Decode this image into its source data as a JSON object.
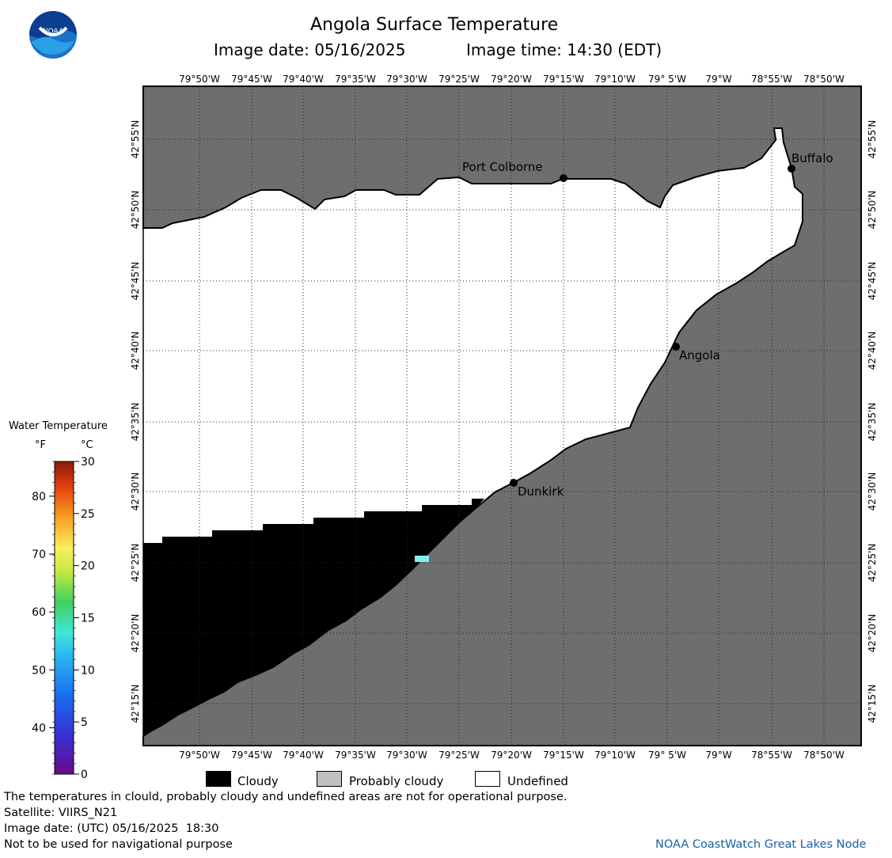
{
  "header": {
    "title": "Angola Surface Temperature",
    "image_date": "Image date: 05/16/2025",
    "image_time": "Image time: 14:30 (EDT)"
  },
  "logo": {
    "text": "NOAA"
  },
  "axes": {
    "lon_ticks": [
      "79°50'W",
      "79°45'W",
      "79°40'W",
      "79°35'W",
      "79°30'W",
      "79°25'W",
      "79°20'W",
      "79°15'W",
      "79°10'W",
      "79° 5'W",
      "79°W",
      "78°55'W",
      "78°50'W"
    ],
    "lat_ticks": [
      "42°55'N",
      "42°50'N",
      "42°45'N",
      "42°40'N",
      "42°35'N",
      "42°30'N",
      "42°25'N",
      "42°20'N",
      "42°15'N"
    ]
  },
  "places": [
    {
      "name": "Port Colborne"
    },
    {
      "name": "Buffalo"
    },
    {
      "name": "Angola"
    },
    {
      "name": "Dunkirk"
    }
  ],
  "colorbar": {
    "title": "Water Temperature",
    "unit_f": "°F",
    "unit_c": "°C",
    "f_ticks": [
      "80",
      "70",
      "60",
      "50",
      "40"
    ],
    "c_ticks": [
      "30",
      "25",
      "20",
      "15",
      "10",
      "5",
      "0"
    ]
  },
  "legend": {
    "cloudy": "Cloudy",
    "probably_cloudy": "Probably cloudy",
    "undefined": "Undefined",
    "colors": {
      "cloudy": "#000000",
      "probably_cloudy": "#c0c0c0",
      "undefined": "#ffffff",
      "land": "#6e6e6e",
      "water_sample": "#7ff0f0"
    }
  },
  "footer": {
    "disclaimer": "The temperatures in clould, probably cloudy and undefined areas are not for operational purpose.",
    "satellite": "Satellite: VIIRS_N21",
    "utc_date": "Image date: (UTC) 05/16/2025  18:30",
    "nav": "Not to be used for navigational purpose",
    "credit": "NOAA CoastWatch Great Lakes Node"
  }
}
